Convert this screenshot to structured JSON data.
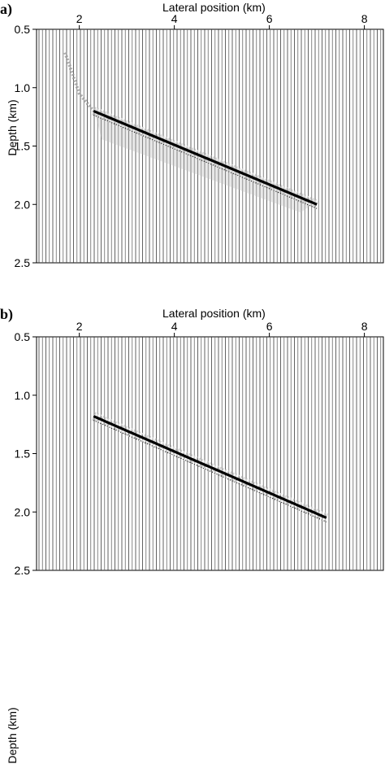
{
  "chart_data": [
    {
      "panel_label": "a)",
      "type": "seismic-wiggle",
      "xlabel": "Lateral position (km)",
      "ylabel": "Depth (km)",
      "x_ticks": [
        "2",
        "4",
        "6",
        "8"
      ],
      "y_ticks": [
        "0.5",
        "1.0",
        "1.5",
        "2.0",
        "2.5"
      ],
      "xlim": [
        1.1,
        8.4
      ],
      "ylim": [
        0.5,
        2.5
      ],
      "y_inverted": true,
      "reflector": {
        "x": [
          2.3,
          7.0
        ],
        "depth": [
          1.2,
          2.0
        ]
      },
      "diffraction_tail": {
        "x": [
          1.7,
          2.0,
          2.3
        ],
        "depth": [
          0.7,
          1.05,
          1.2
        ]
      }
    },
    {
      "panel_label": "b)",
      "type": "seismic-wiggle",
      "xlabel": "Lateral position (km)",
      "ylabel": "Depth (km)",
      "x_ticks": [
        "2",
        "4",
        "6",
        "8"
      ],
      "y_ticks": [
        "0.5",
        "1.0",
        "1.5",
        "2.0",
        "2.5"
      ],
      "xlim": [
        1.1,
        8.4
      ],
      "ylim": [
        0.5,
        2.5
      ],
      "y_inverted": true,
      "reflector": {
        "x": [
          2.3,
          7.2
        ],
        "depth": [
          1.18,
          2.05
        ]
      }
    }
  ]
}
